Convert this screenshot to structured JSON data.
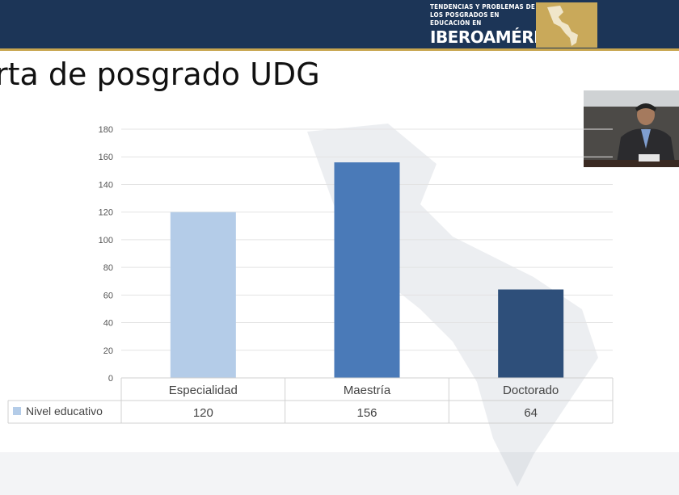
{
  "header": {
    "logo_line1": "TENDENCIAS Y PROBLEMAS DE",
    "logo_line2": "LOS POSGRADOS EN EDUCACIÓN EN",
    "logo_line3": "IBEROAMÉRICA",
    "bar_color": "#1c3557",
    "accent_color": "#c8a64f"
  },
  "slide": {
    "title": "rta de posgrado UDG"
  },
  "chart_data": {
    "type": "bar",
    "categories": [
      "Especialidad",
      "Maestría",
      "Doctorado"
    ],
    "series": [
      {
        "name": "Nivel educativo",
        "values": [
          120,
          156,
          64
        ],
        "colors": [
          "#b4cce8",
          "#4a7ab8",
          "#2e4f7a"
        ]
      }
    ],
    "ylim": [
      0,
      180
    ],
    "yticks": [
      0,
      20,
      40,
      60,
      80,
      100,
      120,
      140,
      160,
      180
    ],
    "grid": true,
    "data_table": true,
    "legend_color": "#b4cce8"
  }
}
